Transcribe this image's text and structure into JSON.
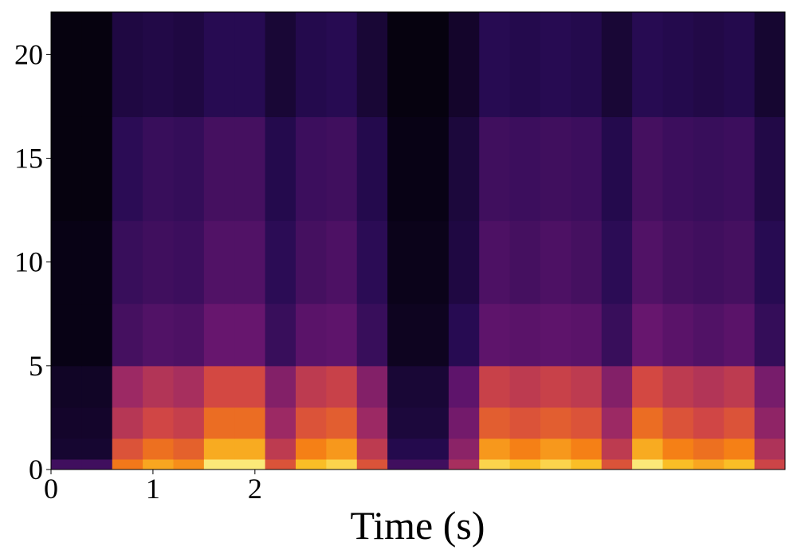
{
  "chart_data": {
    "type": "spectrogram",
    "x_label": "Time (s)",
    "colormap": "inferno",
    "xlim": [
      0,
      7.2
    ],
    "ylim": [
      0,
      22.05
    ],
    "xticks": [
      0,
      1,
      2
    ],
    "yticks": [
      0,
      5,
      10,
      15,
      20
    ],
    "x_edges": [
      0,
      0.3,
      0.6,
      0.9,
      1.2,
      1.5,
      1.8,
      2.1,
      2.4,
      2.7,
      3.0,
      3.3,
      3.6,
      3.9,
      4.2,
      4.5,
      4.8,
      5.1,
      5.4,
      5.7,
      6.0,
      6.3,
      6.6,
      6.9,
      7.2
    ],
    "y_edges": [
      0,
      0.5,
      1.5,
      3,
      5,
      8,
      12,
      17,
      22.05
    ],
    "values": [
      [
        0.2,
        0.2,
        0.7,
        0.8,
        0.75,
        0.95,
        0.95,
        0.6,
        0.85,
        0.9,
        0.6,
        0.2,
        0.2,
        0.45,
        0.9,
        0.85,
        0.9,
        0.85,
        0.6,
        0.95,
        0.85,
        0.8,
        0.85,
        0.55
      ],
      [
        0.08,
        0.08,
        0.6,
        0.68,
        0.64,
        0.81,
        0.81,
        0.51,
        0.72,
        0.77,
        0.51,
        0.13,
        0.13,
        0.38,
        0.77,
        0.72,
        0.77,
        0.72,
        0.51,
        0.81,
        0.72,
        0.68,
        0.72,
        0.47
      ],
      [
        0.07,
        0.07,
        0.49,
        0.56,
        0.53,
        0.67,
        0.67,
        0.42,
        0.6,
        0.63,
        0.42,
        0.1,
        0.1,
        0.32,
        0.63,
        0.6,
        0.63,
        0.6,
        0.42,
        0.67,
        0.6,
        0.56,
        0.6,
        0.39
      ],
      [
        0.06,
        0.06,
        0.42,
        0.48,
        0.45,
        0.57,
        0.57,
        0.36,
        0.51,
        0.54,
        0.36,
        0.09,
        0.09,
        0.27,
        0.54,
        0.51,
        0.54,
        0.51,
        0.36,
        0.57,
        0.51,
        0.48,
        0.51,
        0.33
      ],
      [
        0.03,
        0.03,
        0.21,
        0.24,
        0.23,
        0.29,
        0.29,
        0.18,
        0.26,
        0.27,
        0.18,
        0.05,
        0.05,
        0.14,
        0.27,
        0.26,
        0.27,
        0.26,
        0.18,
        0.29,
        0.26,
        0.24,
        0.26,
        0.17
      ],
      [
        0.03,
        0.03,
        0.18,
        0.2,
        0.19,
        0.24,
        0.24,
        0.15,
        0.21,
        0.23,
        0.15,
        0.04,
        0.04,
        0.11,
        0.23,
        0.21,
        0.23,
        0.21,
        0.15,
        0.24,
        0.21,
        0.2,
        0.21,
        0.14
      ],
      [
        0.02,
        0.02,
        0.15,
        0.18,
        0.17,
        0.21,
        0.21,
        0.13,
        0.19,
        0.2,
        0.13,
        0.03,
        0.03,
        0.1,
        0.2,
        0.19,
        0.2,
        0.19,
        0.13,
        0.21,
        0.19,
        0.18,
        0.19,
        0.12
      ],
      [
        0.02,
        0.02,
        0.11,
        0.12,
        0.11,
        0.14,
        0.14,
        0.09,
        0.13,
        0.14,
        0.09,
        0.02,
        0.02,
        0.07,
        0.14,
        0.13,
        0.14,
        0.13,
        0.09,
        0.14,
        0.13,
        0.12,
        0.13,
        0.08
      ]
    ]
  }
}
